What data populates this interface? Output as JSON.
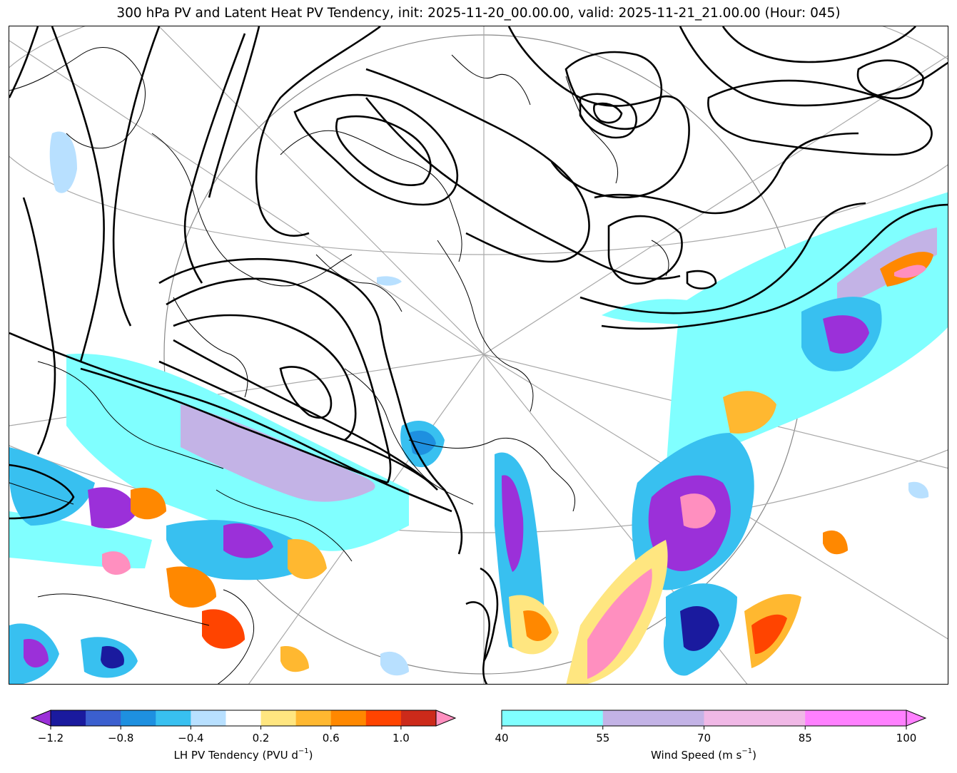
{
  "title": "300 hPa PV and Latent Heat PV Tendency, init: 2025-11-20_00.00.00, valid: 2025-11-21_21.00.00 (Hour: 045)",
  "colors": {
    "wind_40_55": "#80ffff",
    "wind_55_70": "#c3b3e6",
    "wind_70_85": "#f0b8e6",
    "wind_85_100": "#ff80ff",
    "pv_contour": "#000000",
    "coastline": "#000000",
    "graticule": "#a9a9a9"
  },
  "lh_colorbar": {
    "label_text": "LH PV Tendency (PVU d",
    "label_exp": "−1",
    "label_close": ")",
    "ticks": [
      "−1.2",
      "−0.8",
      "−0.4",
      "0.2",
      "0.6",
      "1.0"
    ],
    "tick_values": [
      -1.2,
      -0.8,
      -0.4,
      0.2,
      0.6,
      1.0
    ],
    "bounds": [
      -1.2,
      -1.0,
      -0.8,
      -0.6,
      -0.4,
      -0.2,
      0.2,
      0.4,
      0.6,
      0.8,
      1.0,
      1.2
    ],
    "colors": [
      "#1a1a9e",
      "#3b5fcf",
      "#1e90e0",
      "#38c0f0",
      "#b8e0ff",
      "#ffffff",
      "#ffe680",
      "#ffb830",
      "#ff8800",
      "#ff4400",
      "#cc2a1a"
    ],
    "under_color": "#9b30d9",
    "over_color": "#ff8fbf"
  },
  "wind_colorbar": {
    "label_text": "Wind Speed (m s",
    "label_exp": "−1",
    "label_close": ")",
    "ticks": [
      "40",
      "55",
      "70",
      "85",
      "100"
    ],
    "tick_values": [
      40,
      55,
      70,
      85,
      100
    ],
    "colors": [
      "#80ffff",
      "#c3b3e6",
      "#f0b8e6",
      "#ff80ff"
    ]
  }
}
